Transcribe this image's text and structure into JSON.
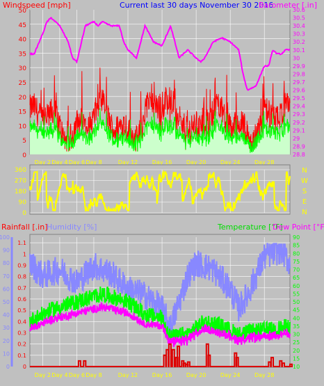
{
  "header": {
    "left_label": "Windspeed [mph]",
    "center_label": "Current last 30 days November 30 2016",
    "right_label": "Barometer [.in]"
  },
  "compass": [
    "N",
    "W",
    "S",
    "E",
    "N"
  ],
  "bottom_header": {
    "rain_label": "Rainfall [.in]",
    "humidity_label": "Humidity [%]",
    "temp_label": "Temperature [°F]",
    "dew_label": "Dew Point [°F]"
  },
  "colors": {
    "windspeed": "#ff0000",
    "gust": "#00ff00",
    "wind_fill": "#ccffcc",
    "barometer": "#ff00ff",
    "direction": "#ffff00",
    "rain": "#dd0000",
    "humidity": "#8888ff",
    "temperature": "#00ff00",
    "dewpoint": "#ff00ff",
    "title_blue": "#0000ff",
    "grid": "#ffffff"
  },
  "chart_data": [
    {
      "type": "line",
      "id": "wind_baro",
      "title": "Current last 30 days November 30 2016",
      "x_ticks": [
        "Day 2",
        "Day 4",
        "Day 6",
        "Day 8",
        "Day 12",
        "Day 16",
        "Day 20",
        "Day 24",
        "Day 28"
      ],
      "x_tick_days": [
        2,
        4,
        6,
        8,
        12,
        16,
        20,
        24,
        28
      ],
      "xlim": [
        0.5,
        31
      ],
      "left_axis": {
        "label": "Windspeed [mph]",
        "ylim": [
          0,
          50
        ],
        "ticks": [
          0,
          5,
          10,
          15,
          20,
          25,
          30,
          35,
          40,
          45,
          50
        ]
      },
      "right_axis": {
        "label": "Barometer [.in]",
        "ylim": [
          28.8,
          30.6
        ],
        "ticks": [
          28.8,
          28.9,
          29.0,
          29.1,
          29.2,
          29.3,
          29.4,
          29.5,
          29.6,
          29.7,
          29.8,
          29.9,
          30.0,
          30.1,
          30.2,
          30.3,
          30.4,
          30.5,
          30.6
        ],
        "tick_labels": [
          "28.8",
          "28.9",
          "29",
          "29.1",
          "29.2",
          "29.3",
          "29.4",
          "29.5",
          "29.6",
          "29.7",
          "29.8",
          "29.9",
          "30",
          "30.1",
          "30.2",
          "30.3",
          "30.4",
          "30.5",
          "30.6"
        ]
      },
      "series": [
        {
          "name": "Barometer",
          "axis": "right",
          "x": [
            0.5,
            1,
            2,
            2.5,
            3,
            4,
            4.5,
            5,
            5.5,
            6,
            7,
            8,
            8.5,
            9,
            10,
            11,
            11.5,
            12,
            13,
            14,
            15,
            16,
            17,
            18,
            19,
            20,
            20.5,
            21,
            22,
            23,
            24,
            25,
            25.5,
            26,
            27,
            28,
            28.5,
            29,
            29.5,
            30,
            30.5,
            31
          ],
          "values": [
            30.05,
            30.05,
            30.3,
            30.45,
            30.5,
            30.4,
            30.3,
            30.2,
            30.0,
            29.95,
            30.4,
            30.45,
            30.4,
            30.45,
            30.4,
            30.4,
            30.2,
            30.1,
            30.0,
            30.4,
            30.2,
            30.15,
            30.4,
            30.0,
            30.1,
            30.0,
            29.95,
            30.0,
            30.2,
            30.25,
            30.2,
            30.1,
            29.8,
            29.6,
            29.65,
            29.9,
            29.9,
            30.1,
            30.05,
            30.05,
            30.1,
            30.1
          ]
        }
      ]
    },
    {
      "type": "line",
      "id": "direction",
      "ylim": [
        0,
        360
      ],
      "left_ticks": [
        0,
        90,
        180,
        270,
        360
      ],
      "right_labels": [
        "N",
        "W",
        "S",
        "E",
        "N"
      ]
    },
    {
      "type": "line",
      "id": "rain_hum_temp",
      "x_ticks": [
        "Day 2",
        "Day 4",
        "Day 6",
        "Day 8",
        "Day 12",
        "Day 16",
        "Day 20",
        "Day 24",
        "Day 28"
      ],
      "humidity_axis": {
        "label": "Humidity [%]",
        "ylim": [
          0,
          100
        ],
        "ticks": [
          0,
          10,
          20,
          30,
          40,
          50,
          60,
          70,
          80,
          90,
          100
        ]
      },
      "rain_axis": {
        "label": "Rainfall [.in]",
        "ylim": [
          0,
          1.15
        ],
        "ticks": [
          0,
          0.1,
          0.2,
          0.3,
          0.4,
          0.5,
          0.6,
          0.7,
          0.8,
          0.9,
          1.0,
          1.1
        ]
      },
      "temp_axis": {
        "label": "Temperature [°F]",
        "ylim": [
          10,
          90
        ],
        "ticks": [
          10,
          15,
          20,
          25,
          30,
          35,
          40,
          45,
          50,
          55,
          60,
          65,
          70,
          75,
          80,
          85,
          90
        ]
      },
      "series": [
        {
          "name": "Rainfall [.in]",
          "axis": "rain",
          "x": [
            6.2,
            6.8,
            16.2,
            16.5,
            16.8,
            17.2,
            17.6,
            17.8,
            18.3,
            18.5,
            18.8,
            19.0,
            21.2,
            21.4,
            24.5,
            24.7,
            28.5,
            28.8,
            29.8,
            30.1,
            31
          ],
          "values": [
            0.05,
            0.05,
            0.1,
            0.15,
            0.2,
            0.15,
            0.08,
            0.18,
            0.05,
            0.03,
            0.02,
            0.04,
            0.2,
            0.1,
            0.12,
            0.08,
            0.04,
            0.08,
            0.05,
            0.03,
            0.02
          ]
        }
      ]
    }
  ]
}
